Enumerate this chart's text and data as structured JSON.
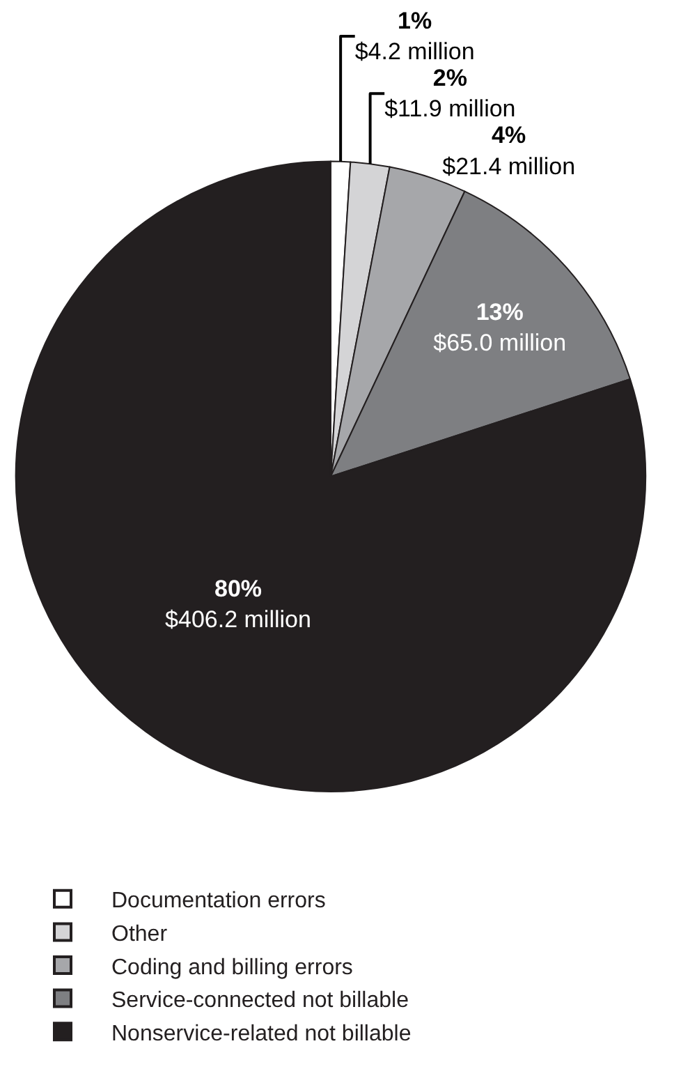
{
  "chart_data": {
    "type": "pie",
    "categories": [
      "Documentation errors",
      "Other",
      "Coding and billing errors",
      "Service-connected not billable",
      "Nonservice-related not billable"
    ],
    "values": [
      1,
      2,
      4,
      13,
      80
    ],
    "value_labels": [
      "1%\n$4.2 million",
      "2%\n$11.9 million",
      "4%\n$21.4 million",
      "13%\n$65.0 million",
      "80%\n$406.2 million"
    ],
    "colors": [
      "#ffffff",
      "#d4d4d6",
      "#a6a7aa",
      "#7e7f82",
      "#231f20"
    ],
    "legend": "bottom"
  }
}
